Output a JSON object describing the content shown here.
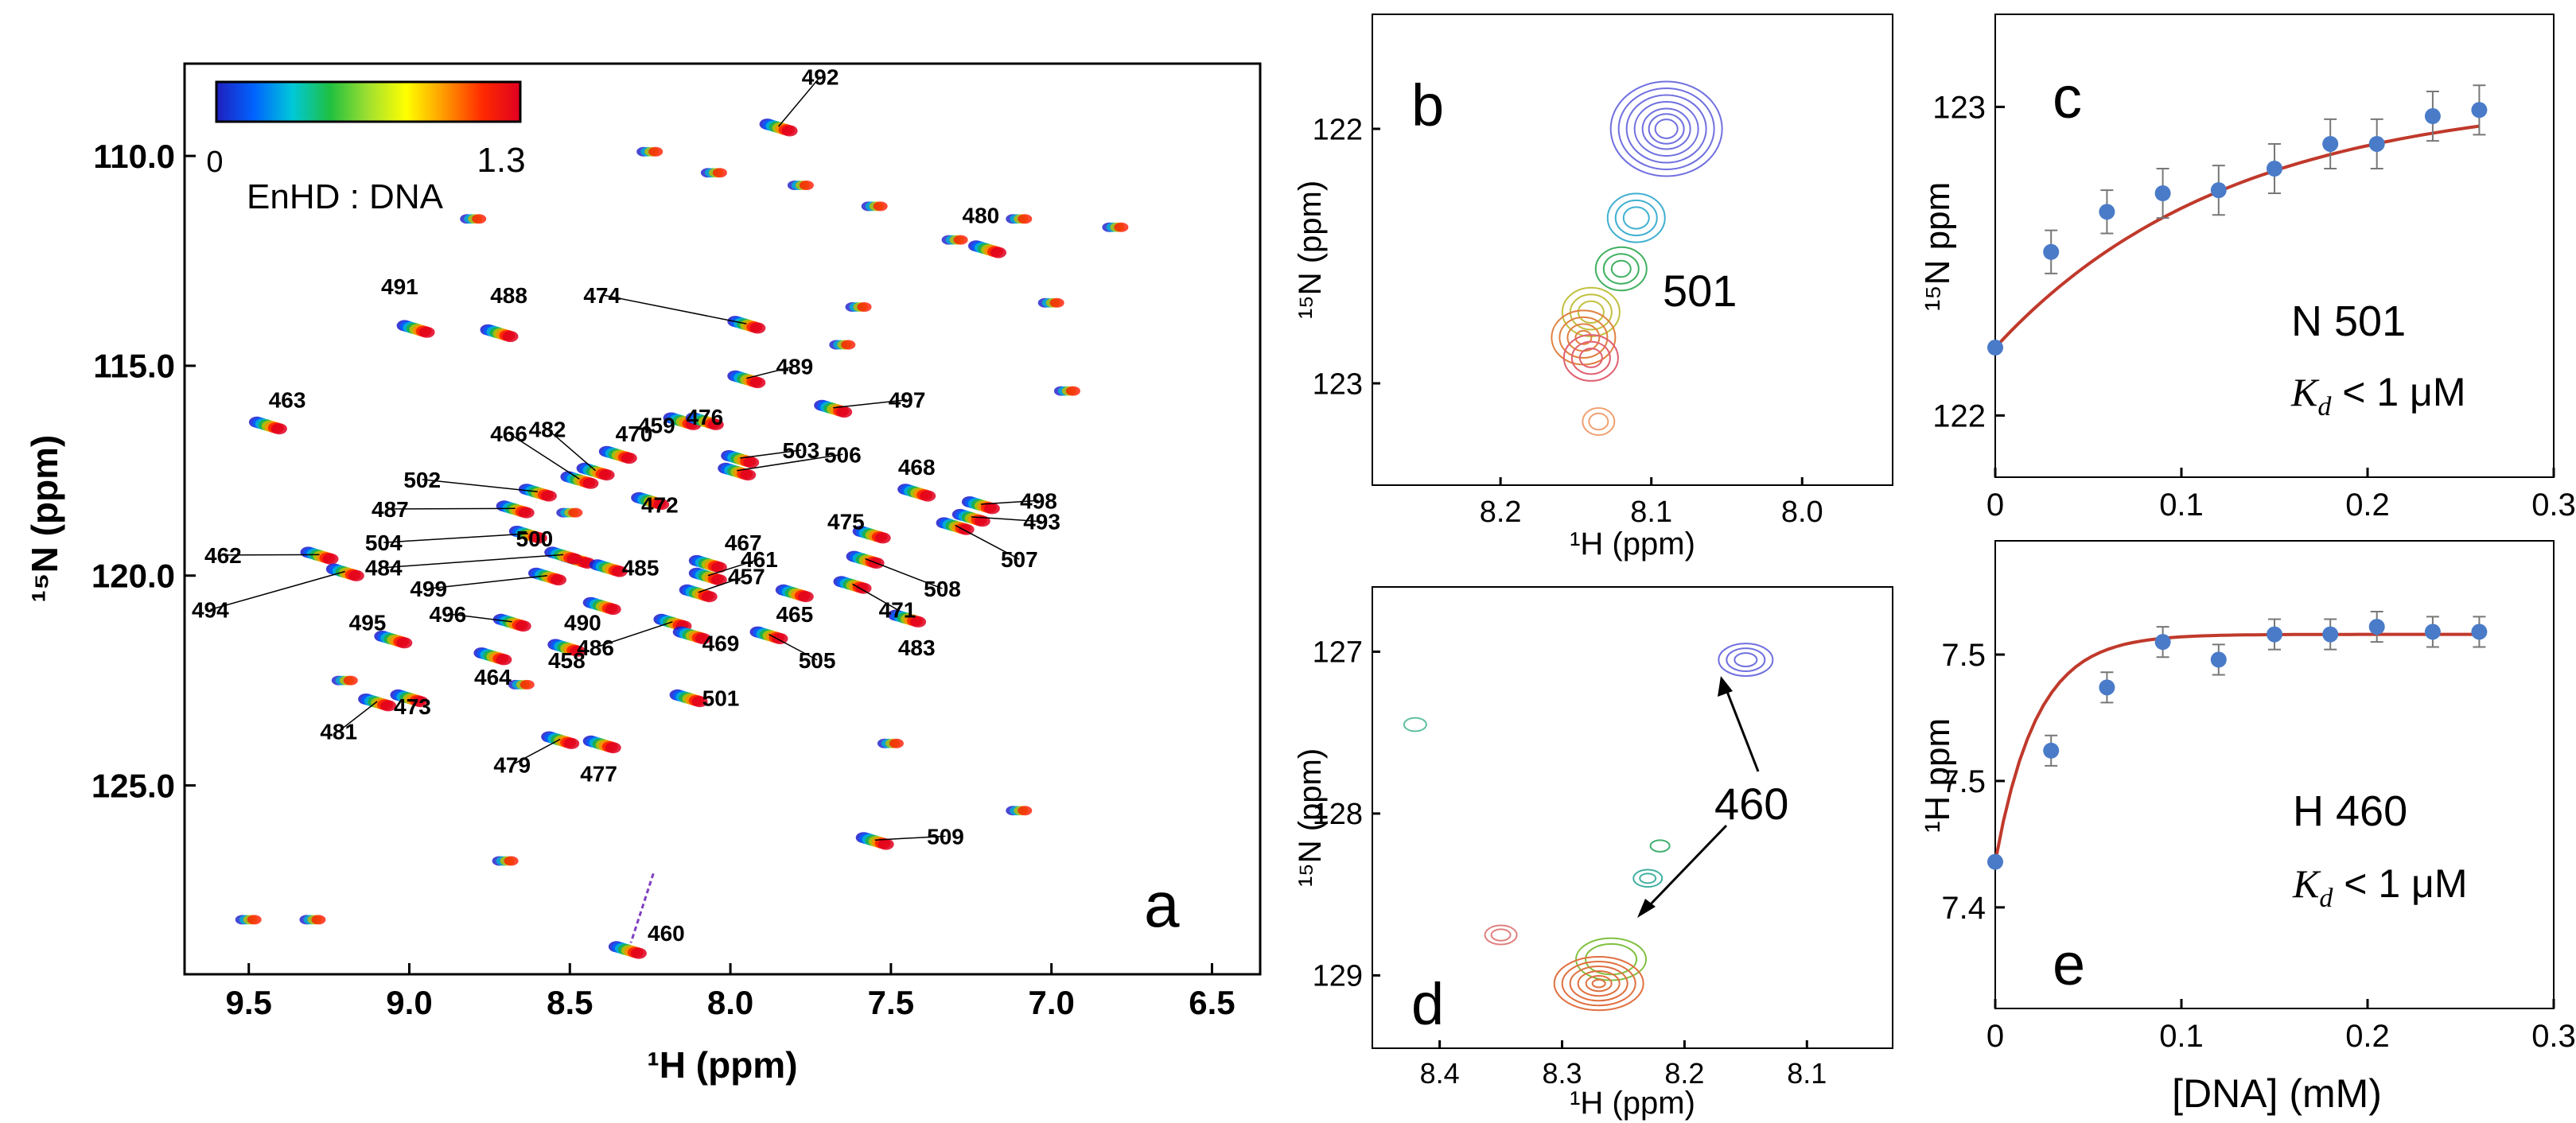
{
  "figure": {
    "panels": [
      "a",
      "b",
      "c",
      "d",
      "e"
    ]
  },
  "colors": {
    "colorbar": [
      "#1f1fbf",
      "#0064ff",
      "#00c8d8",
      "#20c040",
      "#a0e030",
      "#ffff00",
      "#ff9900",
      "#ff2a00",
      "#e00020"
    ],
    "fit_line": "#c0392b",
    "points": "#4a7bc8",
    "errorbar": "#777777"
  },
  "chart_data": [
    {
      "type": "scatter",
      "panel": "a",
      "title": "",
      "xlabel": "¹H (ppm)",
      "ylabel": "¹⁵N (ppm)",
      "xlim": [
        9.7,
        6.35
      ],
      "ylim": [
        129.5,
        107.8
      ],
      "xticks": [
        9.5,
        9.0,
        8.5,
        8.0,
        7.5,
        7.0,
        6.5
      ],
      "xtick_labels": [
        "9.5",
        "9.0",
        "8.5",
        "8.0",
        "7.5",
        "7.0",
        "6.5"
      ],
      "yticks": [
        110.0,
        115.0,
        120.0,
        125.0
      ],
      "ytick_labels": [
        "110.0",
        "115.0",
        "120.0",
        "125.0"
      ],
      "colorbar": {
        "min_label": "0",
        "max_label": "1.3",
        "label": "EnHD : DNA"
      },
      "peaks": [
        {
          "label": "492",
          "h": 7.85,
          "n": 109.3,
          "lh": 7.72,
          "ln": 108.3
        },
        {
          "label": "480",
          "h": 7.2,
          "n": 112.2,
          "lh": 7.22,
          "ln": 111.6
        },
        {
          "label": "491",
          "h": 8.98,
          "n": 114.1,
          "lh": 9.03,
          "ln": 113.3
        },
        {
          "label": "488",
          "h": 8.72,
          "n": 114.2,
          "lh": 8.69,
          "ln": 113.5
        },
        {
          "label": "474",
          "h": 7.95,
          "n": 114.0,
          "lh": 8.4,
          "ln": 113.5
        },
        {
          "label": "489",
          "h": 7.95,
          "n": 115.3,
          "lh": 7.8,
          "ln": 115.2
        },
        {
          "label": "463",
          "h": 9.44,
          "n": 116.4,
          "lh": 9.38,
          "ln": 116.0
        },
        {
          "label": "497",
          "h": 7.68,
          "n": 116.0,
          "lh": 7.45,
          "ln": 116.0
        },
        {
          "label": "459",
          "h": 8.15,
          "n": 116.3,
          "lh": 8.23,
          "ln": 116.6
        },
        {
          "label": "476",
          "h": 8.08,
          "n": 116.3,
          "lh": 8.08,
          "ln": 116.4
        },
        {
          "label": "466",
          "h": 8.47,
          "n": 117.7,
          "lh": 8.69,
          "ln": 116.8
        },
        {
          "label": "482",
          "h": 8.42,
          "n": 117.5,
          "lh": 8.57,
          "ln": 116.7
        },
        {
          "label": "470",
          "h": 8.35,
          "n": 117.1,
          "lh": 8.3,
          "ln": 116.8
        },
        {
          "label": "503",
          "h": 7.97,
          "n": 117.2,
          "lh": 7.78,
          "ln": 117.2
        },
        {
          "label": "502",
          "h": 8.6,
          "n": 118.0,
          "lh": 8.96,
          "ln": 117.9
        },
        {
          "label": "506",
          "h": 7.98,
          "n": 117.5,
          "lh": 7.65,
          "ln": 117.3
        },
        {
          "label": "468",
          "h": 7.42,
          "n": 118.0,
          "lh": 7.42,
          "ln": 117.6
        },
        {
          "label": "472",
          "h": 8.25,
          "n": 118.2,
          "lh": 8.22,
          "ln": 118.5
        },
        {
          "label": "498",
          "h": 7.22,
          "n": 118.3,
          "lh": 7.04,
          "ln": 118.4
        },
        {
          "label": "487",
          "h": 8.67,
          "n": 118.4,
          "lh": 9.06,
          "ln": 118.6
        },
        {
          "label": "493",
          "h": 7.25,
          "n": 118.6,
          "lh": 7.03,
          "ln": 118.9
        },
        {
          "label": "475",
          "h": 7.56,
          "n": 119.0,
          "lh": 7.64,
          "ln": 118.9
        },
        {
          "label": "504",
          "h": 8.63,
          "n": 119.0,
          "lh": 9.08,
          "ln": 119.4
        },
        {
          "label": "500",
          "h": 8.48,
          "n": 119.6,
          "lh": 8.61,
          "ln": 119.3
        },
        {
          "label": "467",
          "h": 8.07,
          "n": 119.7,
          "lh": 7.96,
          "ln": 119.4
        },
        {
          "label": "461",
          "h": 8.07,
          "n": 120.0,
          "lh": 7.91,
          "ln": 119.8
        },
        {
          "label": "507",
          "h": 7.3,
          "n": 118.8,
          "lh": 7.1,
          "ln": 119.8
        },
        {
          "label": "462",
          "h": 9.28,
          "n": 119.5,
          "lh": 9.58,
          "ln": 119.7
        },
        {
          "label": "484",
          "h": 8.52,
          "n": 119.5,
          "lh": 9.08,
          "ln": 120.0
        },
        {
          "label": "485",
          "h": 8.38,
          "n": 119.8,
          "lh": 8.28,
          "ln": 120.0
        },
        {
          "label": "457",
          "h": 8.1,
          "n": 120.4,
          "lh": 7.95,
          "ln": 120.2
        },
        {
          "label": "499",
          "h": 8.57,
          "n": 120.0,
          "lh": 8.94,
          "ln": 120.5
        },
        {
          "label": "508",
          "h": 7.58,
          "n": 119.6,
          "lh": 7.34,
          "ln": 120.5
        },
        {
          "label": "494",
          "h": 9.2,
          "n": 119.9,
          "lh": 9.62,
          "ln": 121.0
        },
        {
          "label": "490",
          "h": 8.4,
          "n": 120.7,
          "lh": 8.46,
          "ln": 121.3
        },
        {
          "label": "465",
          "h": 7.8,
          "n": 120.4,
          "lh": 7.8,
          "ln": 121.1
        },
        {
          "label": "471",
          "h": 7.62,
          "n": 120.2,
          "lh": 7.48,
          "ln": 121.0
        },
        {
          "label": "496",
          "h": 8.68,
          "n": 121.1,
          "lh": 8.88,
          "ln": 121.1
        },
        {
          "label": "495",
          "h": 9.05,
          "n": 121.5,
          "lh": 9.13,
          "ln": 121.3
        },
        {
          "label": "483",
          "h": 7.45,
          "n": 121.0,
          "lh": 7.42,
          "ln": 121.9
        },
        {
          "label": "486",
          "h": 8.18,
          "n": 121.1,
          "lh": 8.42,
          "ln": 121.9
        },
        {
          "label": "469",
          "h": 8.12,
          "n": 121.4,
          "lh": 8.03,
          "ln": 121.8
        },
        {
          "label": "458",
          "h": 8.51,
          "n": 121.7,
          "lh": 8.51,
          "ln": 122.2
        },
        {
          "label": "505",
          "h": 7.88,
          "n": 121.4,
          "lh": 7.73,
          "ln": 122.2
        },
        {
          "label": "464",
          "h": 8.74,
          "n": 121.9,
          "lh": 8.74,
          "ln": 122.6
        },
        {
          "label": "501",
          "h": 8.13,
          "n": 122.9,
          "lh": 8.03,
          "ln": 123.1
        },
        {
          "label": "473",
          "h": 9.0,
          "n": 122.9,
          "lh": 8.99,
          "ln": 123.3
        },
        {
          "label": "481",
          "h": 9.1,
          "n": 123.0,
          "lh": 9.22,
          "ln": 123.9
        },
        {
          "label": "479",
          "h": 8.53,
          "n": 123.9,
          "lh": 8.68,
          "ln": 124.7
        },
        {
          "label": "477",
          "h": 8.4,
          "n": 124.0,
          "lh": 8.41,
          "ln": 124.9
        },
        {
          "label": "509",
          "h": 7.55,
          "n": 126.3,
          "lh": 7.33,
          "ln": 126.4
        },
        {
          "label": "460",
          "h": 8.32,
          "n": 128.9,
          "lh": 8.2,
          "ln": 128.7
        }
      ],
      "panel_letter": "a"
    },
    {
      "type": "scatter",
      "panel": "b",
      "title": "",
      "xlabel": "¹H (ppm)",
      "ylabel": "¹⁵N (ppm)",
      "xlim": [
        8.285,
        7.94
      ],
      "ylim": [
        123.4,
        121.55
      ],
      "xtick_labels": [
        "8.2",
        "8.1",
        "8.0"
      ],
      "xticks": [
        8.2,
        8.1,
        8.0
      ],
      "ytick_labels": [
        "122",
        "123"
      ],
      "yticks": [
        122,
        123
      ],
      "peak_label": "501",
      "panel_letter": "b"
    },
    {
      "type": "line",
      "panel": "c",
      "title": "",
      "xlabel": "",
      "ylabel": "¹⁵N ppm",
      "xlim": [
        0,
        0.3
      ],
      "ylim": [
        121.8,
        123.3
      ],
      "xticks": [
        0,
        0.1,
        0.2,
        0.3
      ],
      "xtick_labels": [
        "0",
        "0.1",
        "0.2",
        "0.3"
      ],
      "yticks": [
        122,
        123
      ],
      "ytick_labels": [
        "122",
        "123"
      ],
      "x": [
        0,
        0.03,
        0.06,
        0.09,
        0.12,
        0.15,
        0.18,
        0.205,
        0.235,
        0.26
      ],
      "y": [
        122.22,
        122.53,
        122.66,
        122.72,
        122.73,
        122.8,
        122.88,
        122.88,
        122.97,
        122.99
      ],
      "err": [
        0.0,
        0.07,
        0.07,
        0.08,
        0.08,
        0.08,
        0.08,
        0.08,
        0.08,
        0.08
      ],
      "fit": {
        "model": "saturation",
        "y0": 122.22,
        "amp": 0.82,
        "k": 8.0
      },
      "annotation": "N 501",
      "kd_symbol": "K",
      "kd_subscript": "d",
      "kd_text": " < 1 μM",
      "panel_letter": "c"
    },
    {
      "type": "scatter",
      "panel": "d",
      "title": "",
      "xlabel": "¹H (ppm)",
      "ylabel": "¹⁵N (ppm)",
      "xlim": [
        8.455,
        8.03
      ],
      "ylim": [
        129.45,
        126.6
      ],
      "xtick_labels": [
        "8.4",
        "8.3",
        "8.2",
        "8.1"
      ],
      "xticks": [
        8.4,
        8.3,
        8.2,
        8.1
      ],
      "ytick_labels": [
        "127",
        "128",
        "129"
      ],
      "yticks": [
        127,
        128,
        129
      ],
      "peak_label": "460",
      "panel_letter": "d"
    },
    {
      "type": "line",
      "panel": "e",
      "title": "",
      "xlabel": "[DNA] (mM)",
      "ylabel": "¹H ppm",
      "xlim": [
        0,
        0.3
      ],
      "ylim": [
        7.36,
        7.545
      ],
      "xticks": [
        0,
        0.1,
        0.2,
        0.3
      ],
      "xtick_labels": [
        "0",
        "0.1",
        "0.2",
        "0.3"
      ],
      "yticks": [
        7.4,
        7.45,
        7.5
      ],
      "ytick_labels": [
        "7.4",
        "7.5",
        "7.5"
      ],
      "x": [
        0,
        0.03,
        0.06,
        0.09,
        0.12,
        0.15,
        0.18,
        0.205,
        0.235,
        0.26
      ],
      "y": [
        7.418,
        7.462,
        7.487,
        7.505,
        7.498,
        7.508,
        7.508,
        7.511,
        7.509,
        7.509
      ],
      "err": [
        0.0,
        0.006,
        0.006,
        0.006,
        0.006,
        0.006,
        0.006,
        0.006,
        0.006,
        0.006
      ],
      "fit": {
        "model": "tight",
        "y0": 7.418,
        "amp": 0.09,
        "k": 45
      },
      "annotation": "H 460",
      "kd_symbol": "K",
      "kd_subscript": "d",
      "kd_text": " < 1 μM",
      "panel_letter": "e"
    }
  ]
}
